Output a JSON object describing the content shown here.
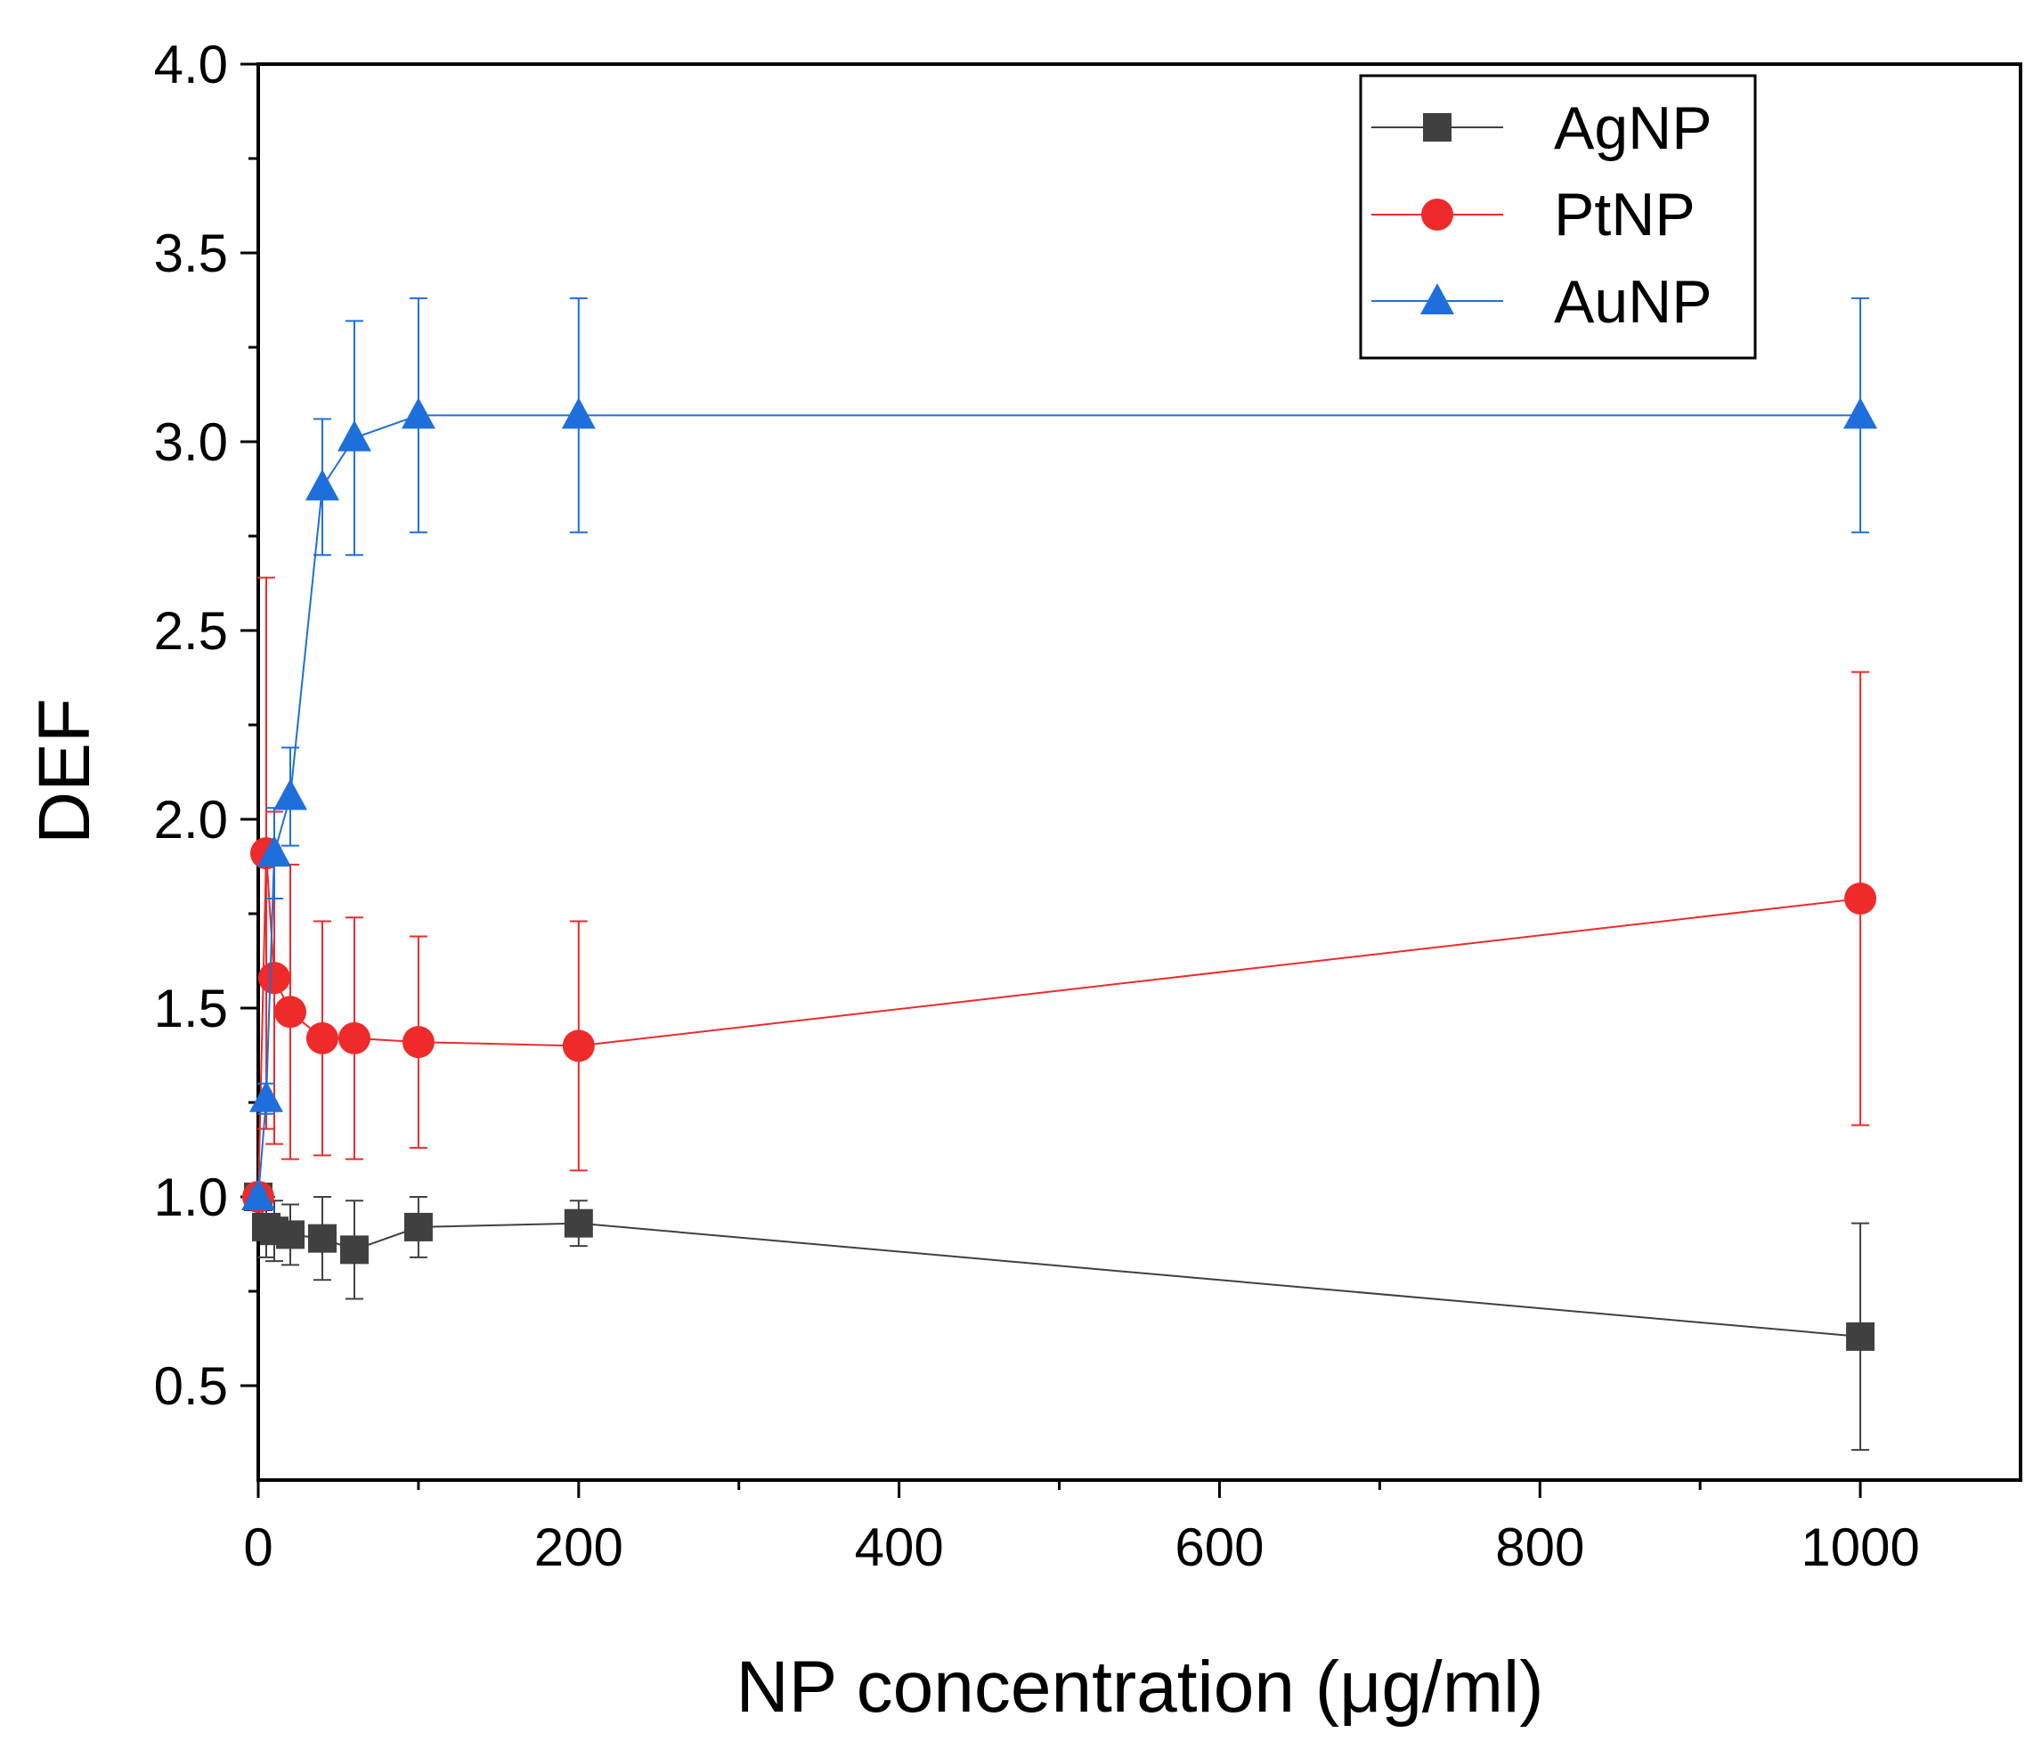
{
  "chart_data": {
    "type": "line",
    "title": "",
    "xlabel": "NP concentration (μg/ml)",
    "ylabel": "DEF",
    "xlim": [
      0,
      1100
    ],
    "ylim": [
      0.25,
      4.0
    ],
    "xticks": [
      0,
      200,
      400,
      600,
      800,
      1000
    ],
    "xtick_labels": [
      "0",
      "200",
      "400",
      "600",
      "800",
      "1000"
    ],
    "yticks": [
      0.5,
      1.0,
      1.5,
      2.0,
      2.5,
      3.0,
      3.5,
      4.0
    ],
    "ytick_labels": [
      "0.5",
      "1.0",
      "1.5",
      "2.0",
      "2.5",
      "3.0",
      "3.5",
      "4.0"
    ],
    "legend_position": "top-right",
    "series": [
      {
        "name": "AgNP",
        "color": "#404040",
        "marker": "square",
        "x": [
          0,
          5,
          10,
          20,
          40,
          60,
          100,
          200,
          1000
        ],
        "y": [
          1.0,
          0.92,
          0.91,
          0.9,
          0.89,
          0.86,
          0.92,
          0.93,
          0.63
        ],
        "err": [
          0.02,
          0.08,
          0.08,
          0.08,
          0.11,
          0.13,
          0.08,
          0.06,
          0.3
        ]
      },
      {
        "name": "PtNP",
        "color": "#ee2a2a",
        "marker": "circle",
        "x": [
          0,
          5,
          10,
          20,
          40,
          60,
          100,
          200,
          1000
        ],
        "y": [
          1.0,
          1.91,
          1.58,
          1.49,
          1.42,
          1.42,
          1.41,
          1.4,
          1.79
        ],
        "err": [
          0.03,
          0.73,
          0.44,
          0.39,
          0.31,
          0.32,
          0.28,
          0.33,
          0.6
        ]
      },
      {
        "name": "AuNP",
        "color": "#1e6fdc",
        "marker": "triangle",
        "x": [
          0,
          5,
          10,
          20,
          40,
          60,
          100,
          200,
          1000
        ],
        "y": [
          1.0,
          1.26,
          1.91,
          2.06,
          2.88,
          3.01,
          3.07,
          3.07,
          3.07
        ],
        "err": [
          0.02,
          0.04,
          0.12,
          0.13,
          0.18,
          0.31,
          0.31,
          0.31,
          0.31
        ]
      }
    ]
  }
}
